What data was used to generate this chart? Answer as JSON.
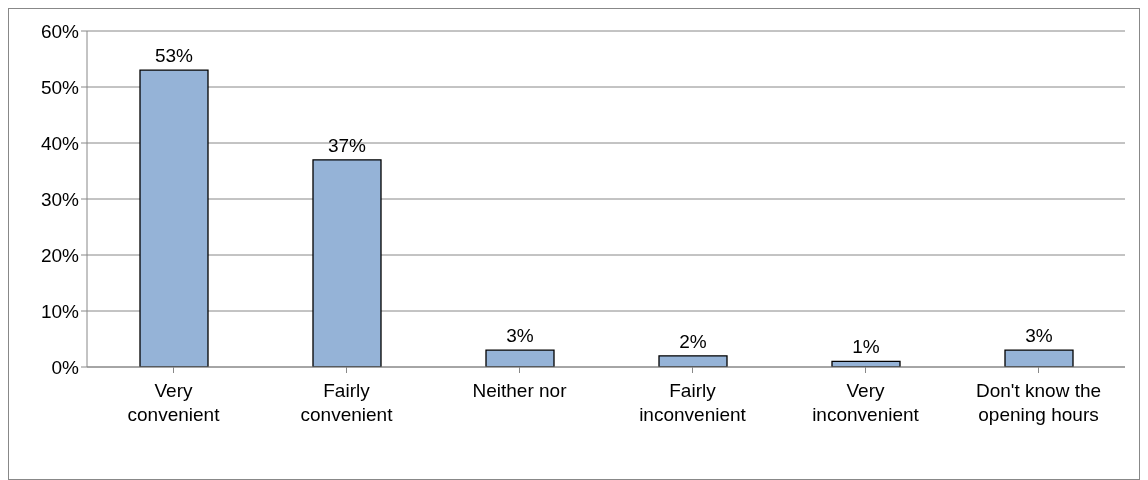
{
  "chart_data": {
    "type": "bar",
    "categories": [
      "Very convenient",
      "Fairly convenient",
      "Neither nor",
      "Fairly inconvenient",
      "Very inconvenient",
      "Don't know the opening hours"
    ],
    "values": [
      53,
      37,
      3,
      2,
      1,
      3
    ],
    "value_labels": [
      "53%",
      "37%",
      "3%",
      "2%",
      "1%",
      "3%"
    ],
    "color": "#95b3d7",
    "ylim": [
      0,
      60
    ],
    "yticks": [
      {
        "value": 0,
        "label": "0%"
      },
      {
        "value": 10,
        "label": "10%"
      },
      {
        "value": 20,
        "label": "20%"
      },
      {
        "value": 30,
        "label": "30%"
      },
      {
        "value": 40,
        "label": "40%"
      },
      {
        "value": 50,
        "label": "50%"
      },
      {
        "value": 60,
        "label": "60%"
      }
    ],
    "grid": "y",
    "legend": false
  }
}
